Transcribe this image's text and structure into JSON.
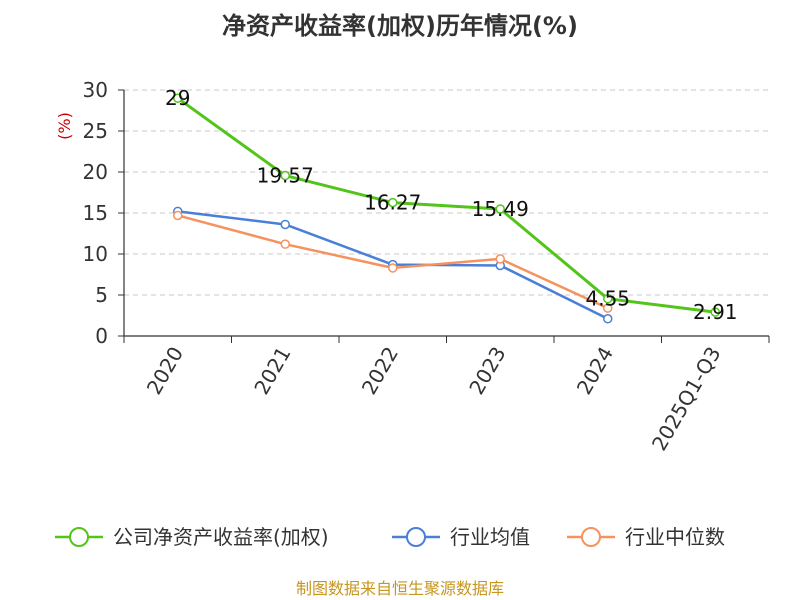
{
  "chart_data": {
    "type": "line",
    "title": "净资产收益率(加权)历年情况(%)",
    "ylabel": "(%)",
    "categories": [
      "2020",
      "2021",
      "2022",
      "2023",
      "2024",
      "2025Q1-Q3"
    ],
    "ylim": [
      0,
      30
    ],
    "yticks": [
      0,
      5,
      10,
      15,
      20,
      25,
      30
    ],
    "grid": true,
    "legend_position": "bottom",
    "series": [
      {
        "name": "公司净资产收益率(加权)",
        "color": "#52c41a",
        "values": [
          29,
          19.57,
          16.27,
          15.49,
          4.55,
          2.91
        ],
        "labels": [
          "29",
          "19.57",
          "16.27",
          "15.49",
          "4.55",
          "2.91"
        ]
      },
      {
        "name": "行业均值",
        "color": "#4a7fd8",
        "values": [
          15.2,
          13.6,
          8.7,
          8.6,
          2.1,
          null
        ]
      },
      {
        "name": "行业中位数",
        "color": "#f5925e",
        "values": [
          14.7,
          11.2,
          8.3,
          9.4,
          3.4,
          null
        ]
      }
    ]
  },
  "source": "制图数据来自恒生聚源数据库"
}
